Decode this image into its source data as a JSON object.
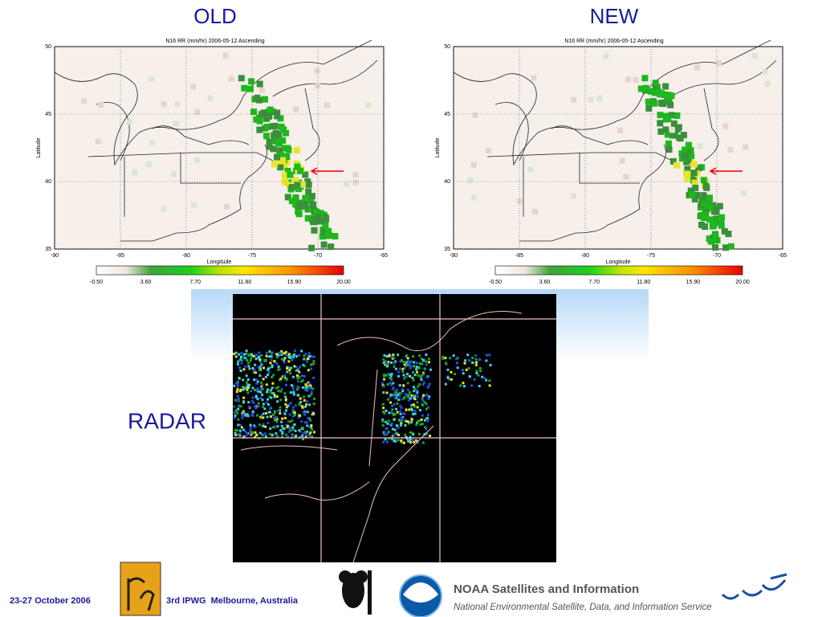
{
  "slide": {
    "radar_label": "RADAR"
  },
  "panels": [
    {
      "heading": "OLD",
      "title": "N16 RR (mm/hr) 2006-05-12 Ascending",
      "ylabel": "Latitude",
      "xlabel": "Longitude",
      "yticks": [
        "50",
        "45",
        "40",
        "35"
      ],
      "xticks": [
        "-90",
        "-85",
        "-80",
        "-75",
        "-70",
        "-65"
      ],
      "colorbar_ticks": [
        "-0.50",
        "3.60",
        "7.70",
        "11.80",
        "15.90",
        "20.00"
      ]
    },
    {
      "heading": "NEW",
      "title": "N16 RR (mm/hr) 2006-05-12 Ascending",
      "ylabel": "Latitude",
      "xlabel": "Longitude",
      "yticks": [
        "50",
        "45",
        "40",
        "35"
      ],
      "xticks": [
        "-90",
        "-85",
        "-80",
        "-75",
        "-70",
        "-65"
      ],
      "colorbar_ticks": [
        "-0.50",
        "3.60",
        "7.70",
        "11.80",
        "15.90",
        "20.00"
      ]
    }
  ],
  "footer": {
    "dates": "23-27 October 2006",
    "event": "3rd IPWG  Melbourne, Australia",
    "noaa_title": "NOAA Satellites and Information",
    "noaa_subtitle": "National Environmental Satellite, Data, and Information Service"
  }
}
